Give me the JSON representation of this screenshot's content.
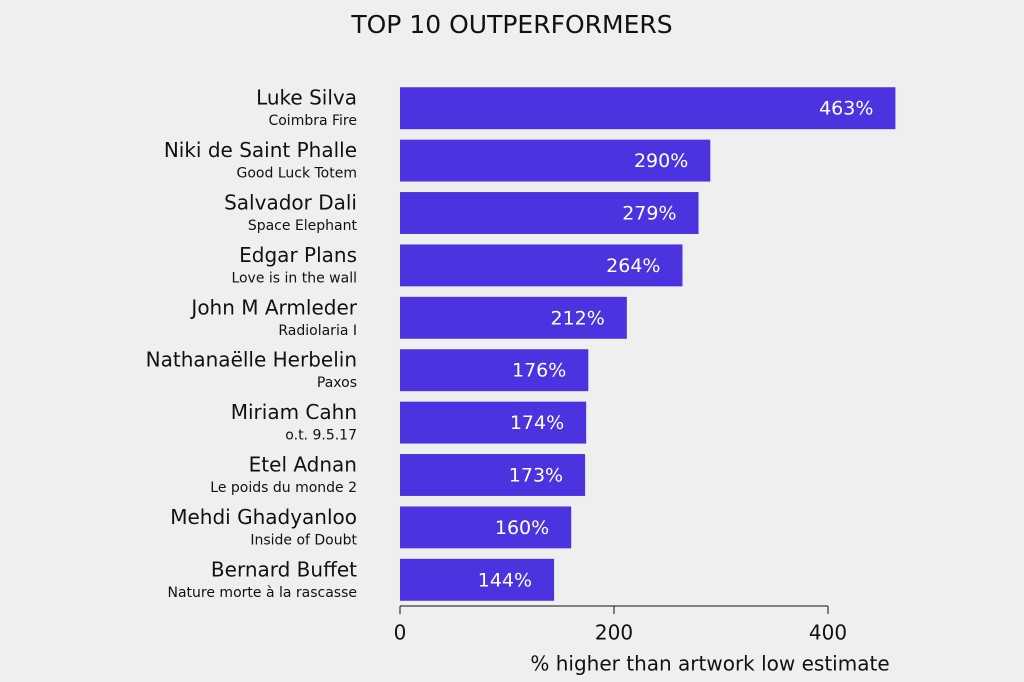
{
  "chart_data": {
    "type": "bar",
    "orientation": "horizontal",
    "title": "TOP 10 OUTPERFORMERS",
    "categories": [
      "Luke Silva",
      "Niki de Saint Phalle",
      "Salvador Dali",
      "Edgar Plans",
      "John M Armleder",
      "Nathanaëlle Herbelin",
      "Miriam Cahn",
      "Etel Adnan",
      "Mehdi Ghadyanloo",
      "Bernard Buffet"
    ],
    "artworks": [
      "Coimbra Fire",
      "Good Luck Totem",
      "Space Elephant",
      "Love is in the wall",
      "Radiolaria I",
      "Paxos",
      "o.t. 9.5.17",
      "Le poids du monde 2",
      "Inside of Doubt",
      "Nature morte à la rascasse"
    ],
    "values": [
      463,
      290,
      279,
      264,
      212,
      176,
      174,
      173,
      160,
      144
    ],
    "value_labels": [
      "463%",
      "290%",
      "279%",
      "264%",
      "212%",
      "176%",
      "174%",
      "173%",
      "160%",
      "144%"
    ],
    "color": "#4b33e0",
    "xlabel": "% higher than artwork low estimate",
    "xlim": [
      0,
      400
    ],
    "xticks": [
      0,
      200,
      400
    ]
  }
}
